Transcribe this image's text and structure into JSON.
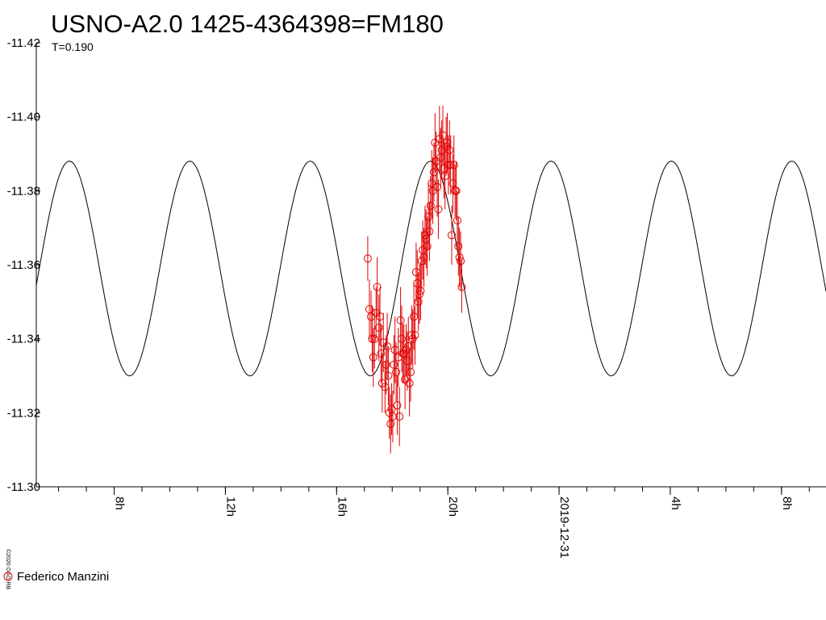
{
  "chart_data": {
    "type": "scatter",
    "title": "USNO-A2.0 1425-4364398=FM180",
    "subtitle": "T=0.190",
    "credit": "©2020 OAG-RB",
    "ylim": [
      -11.42,
      -11.3
    ],
    "y_inverted": true,
    "y_ticks": [
      "-11.42",
      "-11.40",
      "-11.38",
      "-11.36",
      "-11.34",
      "-11.32",
      "-11.30"
    ],
    "x_ticks": [
      {
        "label": "8h",
        "hour": 8
      },
      {
        "label": "12h",
        "hour": 12
      },
      {
        "label": "16h",
        "hour": 16
      },
      {
        "label": "20h",
        "hour": 20
      },
      {
        "label": "2019-12-31",
        "hour": 24
      },
      {
        "label": "4h",
        "hour": 28
      },
      {
        "label": "8h",
        "hour": 32
      }
    ],
    "xlim_hours": [
      5.2,
      33.6
    ],
    "grid": false,
    "model_curve": {
      "period_hours": 4.33,
      "mean": -11.359,
      "amplitude": 0.029,
      "phase_peak_hour": 19.38
    },
    "series": [
      {
        "name": "Federico Manzini",
        "color": "#e00000",
        "marker": "open-circle",
        "points": [
          [
            17.12,
            -11.3617,
            0.006
          ],
          [
            17.18,
            -11.348,
            0.008
          ],
          [
            17.24,
            -11.346,
            0.007
          ],
          [
            17.28,
            -11.34,
            0.009
          ],
          [
            17.32,
            -11.335,
            0.008
          ],
          [
            17.36,
            -11.34,
            0.008
          ],
          [
            17.42,
            -11.347,
            0.007
          ],
          [
            17.46,
            -11.354,
            0.008
          ],
          [
            17.52,
            -11.343,
            0.009
          ],
          [
            17.56,
            -11.346,
            0.008
          ],
          [
            17.6,
            -11.336,
            0.008
          ],
          [
            17.64,
            -11.328,
            0.008
          ],
          [
            17.68,
            -11.339,
            0.008
          ],
          [
            17.74,
            -11.327,
            0.007
          ],
          [
            17.78,
            -11.333,
            0.008
          ],
          [
            17.82,
            -11.338,
            0.009
          ],
          [
            17.86,
            -11.33,
            0.008
          ],
          [
            17.9,
            -11.32,
            0.007
          ],
          [
            17.94,
            -11.317,
            0.008
          ],
          [
            17.98,
            -11.321,
            0.007
          ],
          [
            18.02,
            -11.319,
            0.007
          ],
          [
            18.06,
            -11.333,
            0.008
          ],
          [
            18.1,
            -11.337,
            0.009
          ],
          [
            18.14,
            -11.331,
            0.008
          ],
          [
            18.18,
            -11.322,
            0.008
          ],
          [
            18.22,
            -11.335,
            0.008
          ],
          [
            18.26,
            -11.319,
            0.008
          ],
          [
            18.3,
            -11.345,
            0.009
          ],
          [
            18.34,
            -11.34,
            0.009
          ],
          [
            18.38,
            -11.336,
            0.008
          ],
          [
            18.42,
            -11.336,
            0.008
          ],
          [
            18.46,
            -11.329,
            0.008
          ],
          [
            18.5,
            -11.337,
            0.007
          ],
          [
            18.54,
            -11.334,
            0.008
          ],
          [
            18.58,
            -11.338,
            0.008
          ],
          [
            18.62,
            -11.328,
            0.009
          ],
          [
            18.66,
            -11.331,
            0.008
          ],
          [
            18.7,
            -11.341,
            0.008
          ],
          [
            18.74,
            -11.34,
            0.008
          ],
          [
            18.78,
            -11.346,
            0.009
          ],
          [
            18.82,
            -11.341,
            0.008
          ],
          [
            18.86,
            -11.358,
            0.008
          ],
          [
            18.9,
            -11.355,
            0.009
          ],
          [
            18.94,
            -11.35,
            0.008
          ],
          [
            18.98,
            -11.352,
            0.008
          ],
          [
            19.02,
            -11.353,
            0.008
          ],
          [
            19.06,
            -11.361,
            0.008
          ],
          [
            19.1,
            -11.364,
            0.008
          ],
          [
            19.14,
            -11.362,
            0.008
          ],
          [
            19.18,
            -11.368,
            0.008
          ],
          [
            19.22,
            -11.367,
            0.008
          ],
          [
            19.26,
            -11.365,
            0.008
          ],
          [
            19.3,
            -11.373,
            0.009
          ],
          [
            19.34,
            -11.369,
            0.008
          ],
          [
            19.38,
            -11.376,
            0.008
          ],
          [
            19.42,
            -11.382,
            0.009
          ],
          [
            19.46,
            -11.38,
            0.009
          ],
          [
            19.5,
            -11.385,
            0.008
          ],
          [
            19.54,
            -11.393,
            0.008
          ],
          [
            19.58,
            -11.388,
            0.008
          ],
          [
            19.62,
            -11.381,
            0.008
          ],
          [
            19.66,
            -11.375,
            0.008
          ],
          [
            19.7,
            -11.394,
            0.009
          ],
          [
            19.74,
            -11.389,
            0.008
          ],
          [
            19.78,
            -11.391,
            0.008
          ],
          [
            19.82,
            -11.395,
            0.008
          ],
          [
            19.86,
            -11.386,
            0.008
          ],
          [
            19.9,
            -11.384,
            0.009
          ],
          [
            19.94,
            -11.392,
            0.008
          ],
          [
            19.98,
            -11.393,
            0.008
          ],
          [
            20.02,
            -11.387,
            0.008
          ],
          [
            20.06,
            -11.391,
            0.008
          ],
          [
            20.1,
            -11.387,
            0.008
          ],
          [
            20.14,
            -11.368,
            0.008
          ],
          [
            20.18,
            -11.382,
            0.008
          ],
          [
            20.22,
            -11.387,
            0.008
          ],
          [
            20.26,
            -11.38,
            0.007
          ],
          [
            20.3,
            -11.38,
            0.008
          ],
          [
            20.34,
            -11.372,
            0.008
          ],
          [
            20.38,
            -11.365,
            0.008
          ],
          [
            20.42,
            -11.362,
            0.008
          ],
          [
            20.46,
            -11.361,
            0.008
          ],
          [
            20.5,
            -11.354,
            0.007
          ]
        ]
      }
    ],
    "legend": {
      "label": "Federico Manzini",
      "position": "bottom-left"
    }
  }
}
